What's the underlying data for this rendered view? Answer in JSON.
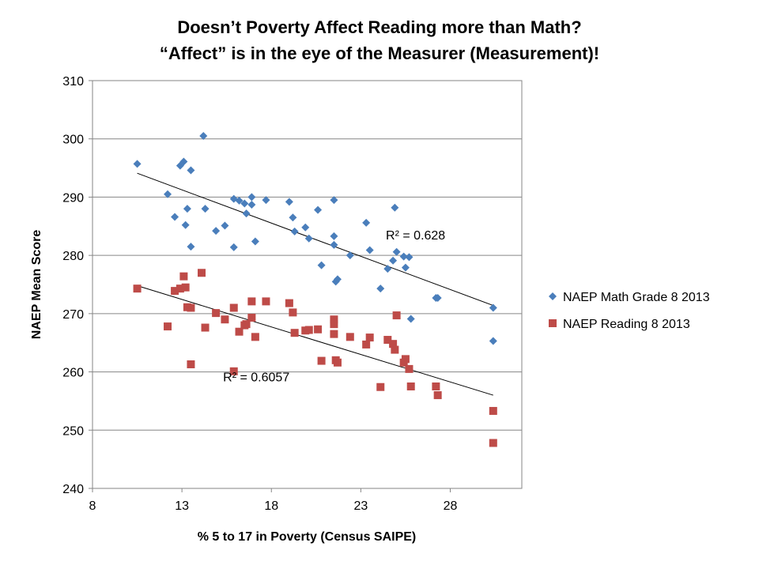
{
  "chart_data": {
    "type": "scatter",
    "title": [
      "Doesn’t Poverty Affect Reading more than Math?",
      "“Affect” is in the eye of the Measurer (Measurement)!"
    ],
    "xlabel": "% 5 to 17 in Poverty (Census SAIPE)",
    "ylabel": "NAEP Mean Score",
    "xlim": [
      8,
      32
    ],
    "ylim": [
      240,
      310
    ],
    "xticks": [
      8,
      13,
      18,
      23,
      28
    ],
    "yticks": [
      240,
      250,
      260,
      270,
      280,
      290,
      300,
      310
    ],
    "grid": "horizontal",
    "legend_position": "right",
    "series": [
      {
        "name": "NAEP Math Grade 8 2013",
        "marker": "diamond",
        "color": "#4a7ebb",
        "trendline": {
          "x": [
            10.5,
            30.4
          ],
          "y": [
            294.1,
            271.4
          ],
          "label": "R² = 0.628",
          "label_at": [
            24.4,
            282.7
          ]
        },
        "points": [
          [
            10.5,
            295.7
          ],
          [
            12.2,
            290.5
          ],
          [
            12.6,
            286.6
          ],
          [
            12.9,
            295.4
          ],
          [
            13.1,
            296.1
          ],
          [
            13.2,
            285.2
          ],
          [
            13.3,
            288.0
          ],
          [
            13.5,
            294.6
          ],
          [
            13.5,
            281.5
          ],
          [
            14.2,
            300.5
          ],
          [
            14.3,
            288.0
          ],
          [
            14.9,
            284.2
          ],
          [
            15.4,
            285.1
          ],
          [
            15.9,
            289.7
          ],
          [
            15.9,
            281.4
          ],
          [
            16.2,
            289.4
          ],
          [
            16.5,
            288.9
          ],
          [
            16.6,
            287.2
          ],
          [
            16.9,
            290.0
          ],
          [
            16.9,
            288.7
          ],
          [
            17.1,
            282.4
          ],
          [
            17.7,
            289.5
          ],
          [
            19.0,
            289.2
          ],
          [
            19.2,
            286.5
          ],
          [
            19.3,
            284.1
          ],
          [
            19.9,
            284.8
          ],
          [
            20.1,
            282.9
          ],
          [
            20.6,
            287.8
          ],
          [
            20.8,
            278.3
          ],
          [
            21.5,
            289.5
          ],
          [
            21.5,
            283.3
          ],
          [
            21.5,
            281.8
          ],
          [
            21.6,
            275.5
          ],
          [
            21.7,
            275.9
          ],
          [
            22.4,
            280.0
          ],
          [
            23.3,
            285.6
          ],
          [
            23.5,
            280.9
          ],
          [
            24.1,
            274.3
          ],
          [
            24.5,
            277.7
          ],
          [
            24.8,
            279.1
          ],
          [
            24.9,
            288.2
          ],
          [
            25.0,
            280.6
          ],
          [
            25.4,
            279.8
          ],
          [
            25.5,
            277.9
          ],
          [
            25.7,
            279.7
          ],
          [
            25.8,
            269.1
          ],
          [
            27.2,
            272.7
          ],
          [
            27.3,
            272.7
          ],
          [
            30.4,
            271.0
          ],
          [
            30.4,
            265.3
          ]
        ]
      },
      {
        "name": "NAEP Reading 8 2013",
        "marker": "square",
        "color": "#be4b48",
        "trendline": {
          "x": [
            10.5,
            30.4
          ],
          "y": [
            274.8,
            256.0
          ],
          "label": "R² = 0.6057",
          "label_at": [
            15.3,
            258.4
          ]
        },
        "points": [
          [
            10.5,
            274.3
          ],
          [
            12.2,
            267.8
          ],
          [
            12.6,
            273.9
          ],
          [
            12.9,
            274.3
          ],
          [
            13.1,
            276.4
          ],
          [
            13.2,
            274.5
          ],
          [
            13.3,
            271.1
          ],
          [
            13.5,
            271.0
          ],
          [
            13.5,
            261.3
          ],
          [
            14.1,
            277.0
          ],
          [
            14.3,
            267.6
          ],
          [
            14.9,
            270.1
          ],
          [
            15.4,
            269.0
          ],
          [
            15.9,
            271.0
          ],
          [
            15.9,
            260.1
          ],
          [
            16.2,
            266.9
          ],
          [
            16.5,
            268.0
          ],
          [
            16.6,
            268.2
          ],
          [
            16.9,
            272.1
          ],
          [
            16.9,
            269.3
          ],
          [
            17.1,
            266.0
          ],
          [
            17.7,
            272.1
          ],
          [
            19.0,
            271.8
          ],
          [
            19.2,
            270.2
          ],
          [
            19.3,
            266.7
          ],
          [
            19.9,
            267.1
          ],
          [
            20.1,
            267.2
          ],
          [
            20.6,
            267.3
          ],
          [
            20.8,
            261.9
          ],
          [
            21.5,
            269.0
          ],
          [
            21.5,
            268.2
          ],
          [
            21.5,
            266.5
          ],
          [
            21.6,
            262.0
          ],
          [
            21.7,
            261.6
          ],
          [
            22.4,
            266.0
          ],
          [
            23.3,
            264.7
          ],
          [
            23.5,
            265.9
          ],
          [
            24.1,
            257.4
          ],
          [
            24.5,
            265.5
          ],
          [
            24.8,
            264.8
          ],
          [
            24.9,
            263.8
          ],
          [
            25.0,
            269.7
          ],
          [
            25.4,
            261.6
          ],
          [
            25.5,
            262.2
          ],
          [
            25.7,
            260.5
          ],
          [
            25.8,
            257.5
          ],
          [
            27.2,
            257.5
          ],
          [
            27.3,
            256.0
          ],
          [
            30.4,
            253.3
          ],
          [
            30.4,
            247.8
          ]
        ]
      }
    ]
  }
}
